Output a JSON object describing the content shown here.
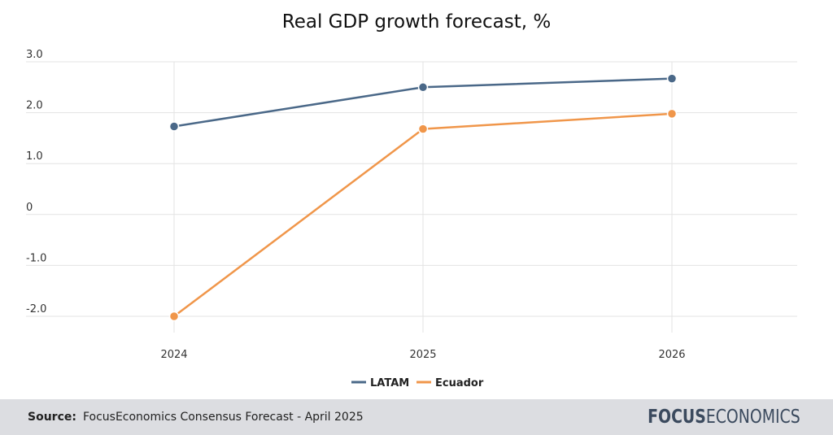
{
  "chart_data": {
    "type": "line",
    "title": "Real GDP growth forecast, %",
    "categories": [
      "2024",
      "2025",
      "2026"
    ],
    "yticks": [
      "3.0",
      "2.0",
      "1.0",
      "0",
      "-1.0",
      "-2.0"
    ],
    "ylim": [
      -2.0,
      3.0
    ],
    "grid": true,
    "legend_position": "bottom-center",
    "series": [
      {
        "name": "LATAM",
        "color": "#4a6888",
        "values": [
          1.73,
          2.5,
          2.67
        ]
      },
      {
        "name": "Ecuador",
        "color": "#f0964a",
        "values": [
          -2.0,
          1.68,
          1.98
        ]
      }
    ]
  },
  "footer": {
    "source_label": "Source:",
    "source_text": "FocusEconomics Consensus Forecast - April 2025",
    "logo_part1": "FOCUS",
    "logo_part2": "ECONOMICS",
    "logo_color": "#3b4a5e"
  }
}
